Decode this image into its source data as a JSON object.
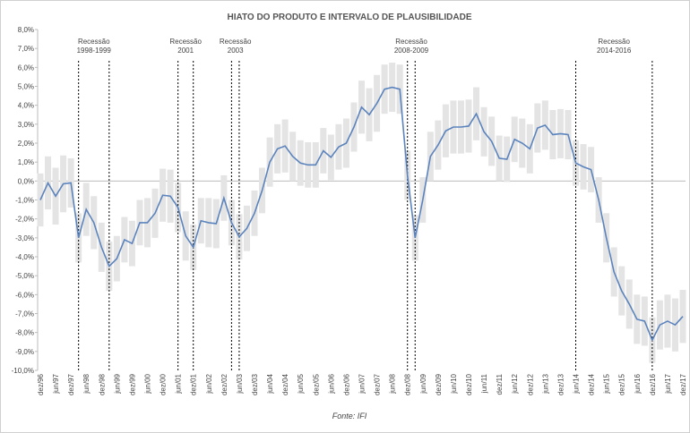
{
  "chart_data": {
    "type": "line-interval",
    "title": "HIATO DO PRODUTO E INTERVALO DE PLAUSIBILIDADE",
    "source": "Fonte: IFI",
    "categories": [
      "dez/96",
      null,
      "jun/97",
      null,
      "dez/97",
      null,
      "jun/98",
      null,
      "dez/98",
      null,
      "jun/99",
      null,
      "dez/99",
      null,
      "jun/00",
      null,
      "dez/00",
      null,
      "jun/01",
      null,
      "dez/01",
      null,
      "jun/02",
      null,
      "dez/02",
      null,
      "jun/03",
      null,
      "dez/03",
      null,
      "jun/04",
      null,
      "dez/04",
      null,
      "jun/05",
      null,
      "dez/05",
      null,
      "jun/06",
      null,
      "dez/06",
      null,
      "jun/07",
      null,
      "dez/07",
      null,
      "jun/08",
      null,
      "dez/08",
      null,
      "jun/09",
      null,
      "dez/09",
      null,
      "jun/10",
      null,
      "dez/10",
      null,
      "jun/11",
      null,
      "dez/11",
      null,
      "jun/12",
      null,
      "dez/12",
      null,
      "jun/13",
      null,
      "dez/13",
      null,
      "jun/14",
      null,
      "dez/14",
      null,
      "jun/15",
      null,
      "dez/15",
      null,
      "jun/16",
      null,
      "dez/16",
      null,
      "jun/17",
      null,
      "dez/17"
    ],
    "values": [
      -1.0,
      -0.1,
      -0.8,
      -0.15,
      -0.1,
      -3.0,
      -1.5,
      -2.2,
      -3.5,
      -4.5,
      -4.1,
      -3.1,
      -3.3,
      -2.2,
      -2.2,
      -1.7,
      -0.75,
      -0.8,
      -1.4,
      -2.9,
      -3.5,
      -2.1,
      -2.2,
      -2.25,
      -0.9,
      -2.2,
      -2.95,
      -2.5,
      -1.7,
      -0.5,
      1.0,
      1.7,
      1.85,
      1.3,
      0.95,
      0.85,
      0.85,
      1.6,
      1.25,
      1.8,
      2.0,
      2.85,
      3.9,
      3.5,
      4.1,
      4.85,
      4.95,
      4.85,
      0.3,
      -3.0,
      -1.0,
      1.3,
      1.9,
      2.65,
      2.85,
      2.85,
      2.9,
      3.55,
      2.6,
      2.1,
      1.2,
      1.15,
      2.2,
      2.0,
      1.7,
      2.8,
      2.95,
      2.45,
      2.5,
      2.45,
      0.95,
      0.75,
      0.6,
      -1.0,
      -3.0,
      -4.8,
      -5.8,
      -6.5,
      -7.3,
      -7.4,
      -8.4,
      -7.6,
      -7.4,
      -7.6,
      -7.15
    ],
    "errors": [
      1.4,
      1.4,
      1.5,
      1.5,
      1.3,
      1.3,
      1.4,
      1.4,
      1.3,
      1.3,
      1.2,
      1.2,
      1.2,
      1.2,
      1.3,
      1.3,
      1.4,
      1.4,
      1.3,
      1.3,
      1.2,
      1.2,
      1.3,
      1.3,
      1.2,
      1.2,
      1.2,
      1.2,
      1.2,
      1.2,
      1.3,
      1.3,
      1.4,
      1.3,
      1.2,
      1.2,
      1.2,
      1.2,
      1.2,
      1.2,
      1.3,
      1.3,
      1.4,
      1.4,
      1.5,
      1.3,
      1.3,
      1.3,
      1.3,
      1.2,
      1.2,
      1.3,
      1.3,
      1.4,
      1.4,
      1.4,
      1.4,
      1.4,
      1.3,
      1.3,
      1.2,
      1.2,
      1.2,
      1.3,
      1.3,
      1.3,
      1.3,
      1.3,
      1.3,
      1.3,
      1.2,
      1.2,
      1.2,
      1.2,
      1.3,
      1.3,
      1.3,
      1.3,
      1.3,
      1.3,
      1.2,
      1.3,
      1.4,
      1.4,
      1.4
    ],
    "color": "#5b83bd",
    "band_color": "#e4e4e4",
    "ylim": [
      -10,
      8
    ],
    "yticks": [
      {
        "value": -10,
        "label": "-10,0%"
      },
      {
        "value": -9,
        "label": "-9,0%"
      },
      {
        "value": -8,
        "label": "-8,0%"
      },
      {
        "value": -7,
        "label": "-7,0%"
      },
      {
        "value": -6,
        "label": "-6,0%"
      },
      {
        "value": -5,
        "label": "-5,0%"
      },
      {
        "value": -4,
        "label": "-4,0%"
      },
      {
        "value": -3,
        "label": "-3,0%"
      },
      {
        "value": -2,
        "label": "-2,0%"
      },
      {
        "value": -1,
        "label": "-1,0%"
      },
      {
        "value": 0,
        "label": "0,0%"
      },
      {
        "value": 1,
        "label": "1,0%"
      },
      {
        "value": 2,
        "label": "2,0%"
      },
      {
        "value": 3,
        "label": "3,0%"
      },
      {
        "value": 4,
        "label": "4,0%"
      },
      {
        "value": 5,
        "label": "5,0%"
      },
      {
        "value": 6,
        "label": "6,0%"
      },
      {
        "value": 7,
        "label": "7,0%"
      },
      {
        "value": 8,
        "label": "8,0%"
      }
    ],
    "recessions": [
      {
        "label": [
          "Recessão",
          "1998-1999"
        ],
        "start": 5,
        "end": 9
      },
      {
        "label": [
          "Recessão",
          "2001"
        ],
        "start": 18,
        "end": 20
      },
      {
        "label": [
          "Recessão",
          "2003"
        ],
        "start": 25,
        "end": 26
      },
      {
        "label": [
          "Recessão",
          "2008-2009"
        ],
        "start": 48,
        "end": 49
      },
      {
        "label": [
          "Recessão",
          "2014-2016"
        ],
        "start": 70,
        "end": 80
      }
    ]
  }
}
